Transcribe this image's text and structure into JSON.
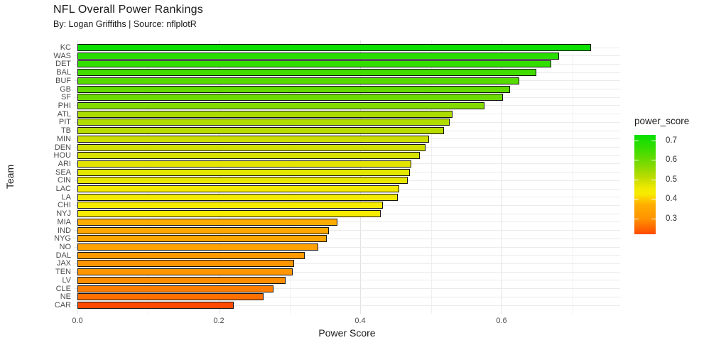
{
  "chart_data": {
    "type": "bar",
    "orientation": "horizontal",
    "title": "NFL Overall Power Rankings",
    "subtitle": "By: Logan Griffiths | Source: nflplotR",
    "xlabel": "Power Score",
    "ylabel": "Team",
    "grid": true,
    "xlim": [
      0,
      0.77
    ],
    "x_major_ticks": [
      0.0,
      0.2,
      0.4,
      0.6
    ],
    "x_tick_labels": [
      "0.0",
      "0.2",
      "0.4",
      "0.6"
    ],
    "x_minor_ticks": [
      0.1,
      0.3,
      0.5,
      0.7
    ],
    "categories": [
      "KC",
      "WAS",
      "DET",
      "BAL",
      "BUF",
      "GB",
      "SF",
      "PHI",
      "ATL",
      "PIT",
      "TB",
      "MIN",
      "DEN",
      "HOU",
      "ARI",
      "SEA",
      "CIN",
      "LAC",
      "LA",
      "CHI",
      "NYJ",
      "MIA",
      "IND",
      "NYG",
      "NO",
      "DAL",
      "JAX",
      "TEN",
      "LV",
      "CLE",
      "NE",
      "CAR"
    ],
    "values": [
      0.725,
      0.679,
      0.668,
      0.647,
      0.623,
      0.61,
      0.6,
      0.574,
      0.529,
      0.525,
      0.517,
      0.495,
      0.49,
      0.482,
      0.47,
      0.468,
      0.465,
      0.453,
      0.451,
      0.43,
      0.427,
      0.366,
      0.354,
      0.351,
      0.339,
      0.32,
      0.305,
      0.303,
      0.292,
      0.275,
      0.261,
      0.219
    ],
    "series_name": "power_score",
    "color_stops": [
      [
        0.219,
        [
          255,
          74,
          0
        ]
      ],
      [
        0.3,
        [
          255,
          148,
          0
        ]
      ],
      [
        0.37,
        [
          255,
          173,
          0
        ]
      ],
      [
        0.4,
        [
          255,
          205,
          0
        ]
      ],
      [
        0.425,
        [
          248,
          235,
          0
        ]
      ],
      [
        0.455,
        [
          240,
          233,
          0
        ]
      ],
      [
        0.5,
        [
          200,
          221,
          0
        ]
      ],
      [
        0.55,
        [
          152,
          218,
          0
        ]
      ],
      [
        0.6,
        [
          106,
          218,
          0
        ]
      ],
      [
        0.66,
        [
          55,
          221,
          0
        ]
      ],
      [
        0.729,
        [
          8,
          224,
          0
        ]
      ]
    ],
    "legend": {
      "title": "power_score",
      "position": "right",
      "type": "gradient-colorbar",
      "domain": [
        0.219,
        0.729
      ],
      "ticks": [
        0.7,
        0.6,
        0.5,
        0.4,
        0.3
      ],
      "tick_labels": [
        "0.7",
        "0.6",
        "0.5",
        "0.4",
        "0.3"
      ]
    }
  }
}
